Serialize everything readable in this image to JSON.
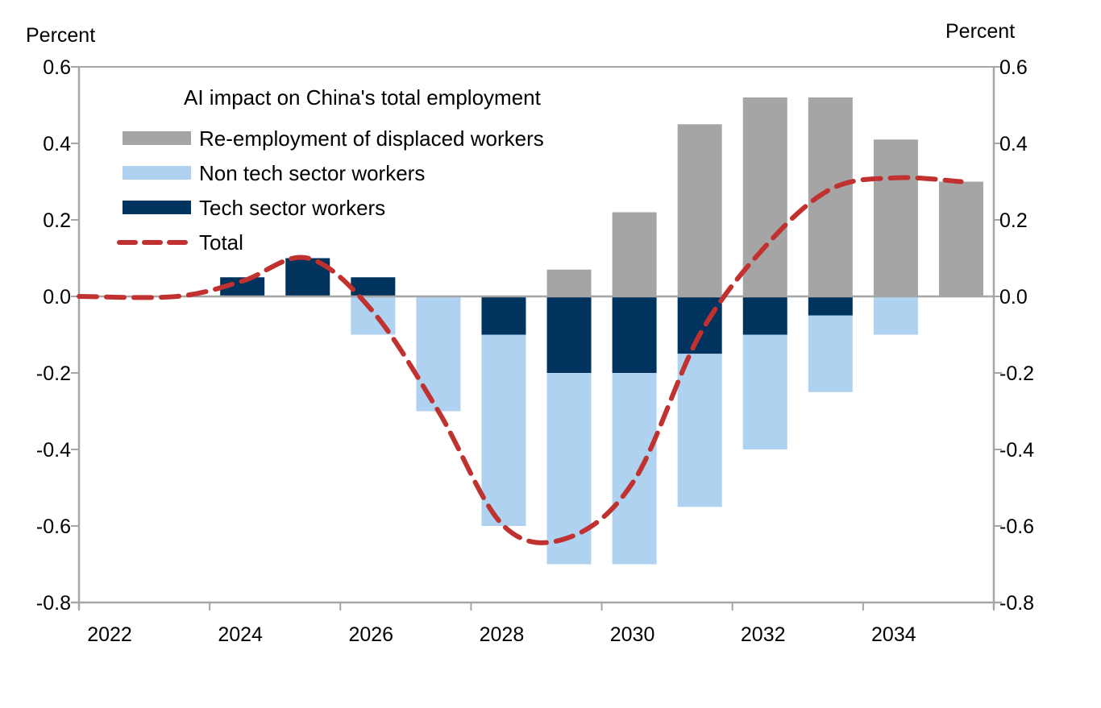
{
  "chart_data": {
    "type": "bar",
    "stacked": true,
    "title": "AI impact on China's total employment",
    "ylabel_left": "Percent",
    "ylabel_right": "Percent",
    "xlabel": "",
    "ylim": [
      -0.8,
      0.6
    ],
    "yticks": [
      0.6,
      0.4,
      0.2,
      0.0,
      -0.2,
      -0.4,
      -0.6,
      -0.8
    ],
    "ytick_labels": [
      "0.6",
      "0.4",
      "0.2",
      "0.0",
      "-0.2",
      "-0.4",
      "-0.6",
      "-0.8"
    ],
    "categories": [
      "2022",
      "2023",
      "2024",
      "2025",
      "2026",
      "2027",
      "2028",
      "2029",
      "2030",
      "2031",
      "2032",
      "2033",
      "2034",
      "2035"
    ],
    "xtick_labels": [
      "2022",
      "2024",
      "2026",
      "2028",
      "2030",
      "2032",
      "2034"
    ],
    "legend_position": "top-left",
    "grid": false,
    "series": [
      {
        "name": "Re-employment of displaced workers",
        "kind": "bar",
        "color": "#a5a5a5",
        "values": [
          0,
          0,
          0,
          0,
          0,
          0,
          0,
          0.07,
          0.22,
          0.45,
          0.52,
          0.52,
          0.41,
          0.3
        ]
      },
      {
        "name": "Non tech sector workers",
        "kind": "bar",
        "color": "#aed2ef",
        "values": [
          0,
          0,
          0,
          0,
          -0.1,
          -0.3,
          -0.5,
          -0.5,
          -0.5,
          -0.4,
          -0.3,
          -0.2,
          -0.1,
          0
        ]
      },
      {
        "name": "Tech sector workers",
        "kind": "bar",
        "color": "#00335e",
        "values": [
          0,
          0,
          0.05,
          0.1,
          0.05,
          0,
          -0.1,
          -0.2,
          -0.2,
          -0.15,
          -0.1,
          -0.05,
          0,
          0
        ]
      },
      {
        "name": "Total",
        "kind": "line",
        "style": "dashed",
        "color": "#c0312f",
        "values": [
          0,
          0,
          0.04,
          0.1,
          -0.04,
          -0.3,
          -0.6,
          -0.63,
          -0.48,
          -0.1,
          0.13,
          0.28,
          0.31,
          0.3
        ]
      }
    ]
  }
}
